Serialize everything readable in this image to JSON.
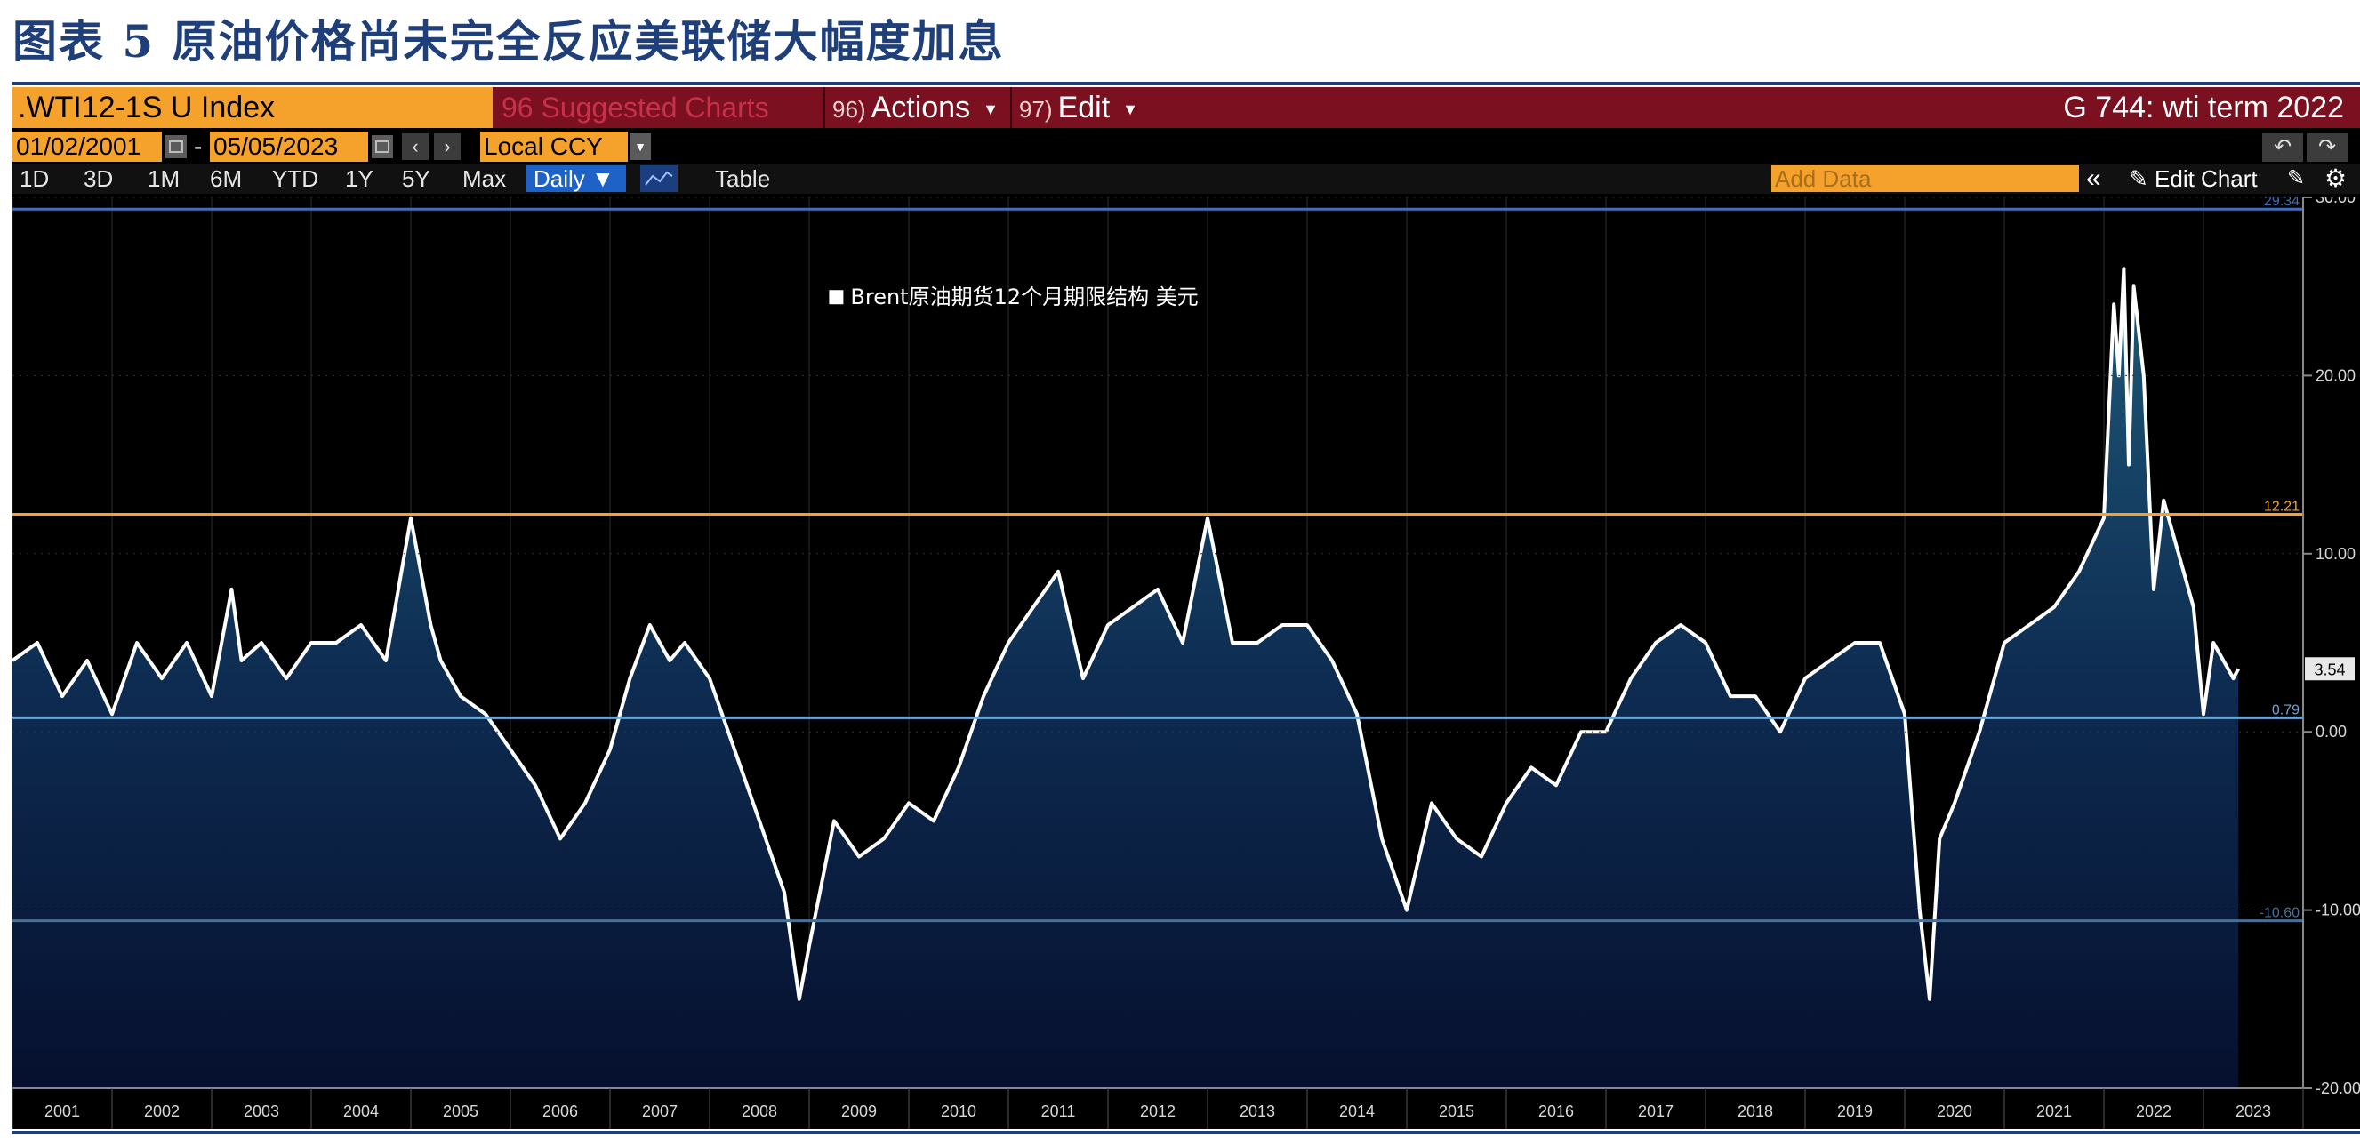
{
  "figure_title": "图表 5 原油价格尚未完全反应美联储大幅度加息",
  "toolbar": {
    "ticker": ".WTI12-1S U Index",
    "suggested": "96 Suggested Charts",
    "actions_num": "96)",
    "actions_label": "Actions",
    "edit_num": "97)",
    "edit_label": "Edit",
    "chart_name": "G 744: wti term 2022"
  },
  "controls": {
    "start_date": "01/02/2001",
    "end_date": "05/05/2023",
    "currency": "Local CCY",
    "ranges": [
      "1D",
      "3D",
      "1M",
      "6M",
      "YTD",
      "1Y",
      "5Y",
      "Max"
    ],
    "frequency": "Daily",
    "table_label": "Table",
    "add_data_placeholder": "Add Data",
    "edit_chart_label": "Edit Chart"
  },
  "icons": [
    "calendar-icon",
    "arrow-left-icon",
    "arrow-right-icon",
    "undo-icon",
    "redo-icon",
    "line-chart-icon",
    "collapse-icon",
    "pencil-icon",
    "gear-icon"
  ],
  "colors": {
    "brand_bar": "#7a1020",
    "accent_orange": "#f4a22c",
    "line": "#ffffff",
    "upper_ref": "#3f6fbf",
    "orange_ref": "#f4a22c",
    "mid_ref": "#6fa6d6",
    "lower_ref": "#4a6f96",
    "title_blue": "#1f3f7a"
  },
  "chart_data": {
    "type": "area",
    "legend": "Brent原油期货12个月期限结构 美元",
    "legend_position": "top-center",
    "ylim": [
      -20,
      30
    ],
    "y_ticks": [
      30,
      20,
      10,
      0,
      -10,
      -20
    ],
    "y_tick_labels": [
      "30.00",
      "20.00",
      "10.00",
      "0.00",
      "-10.00",
      "-20.00"
    ],
    "x_ticks": [
      "2001",
      "2002",
      "2003",
      "2004",
      "2005",
      "2006",
      "2007",
      "2008",
      "2009",
      "2010",
      "2011",
      "2012",
      "2013",
      "2014",
      "2015",
      "2016",
      "2017",
      "2018",
      "2019",
      "2020",
      "2021",
      "2022",
      "2023"
    ],
    "grid": true,
    "last_value": 3.54,
    "last_value_label": "3.54",
    "reference_lines": [
      {
        "value": 29.34,
        "label": "29.34",
        "color": "#3f6fbf"
      },
      {
        "value": 12.21,
        "label": "12.21",
        "color": "#f4a22c"
      },
      {
        "value": 0.79,
        "label": "0.79",
        "color": "#6fa6d6"
      },
      {
        "value": -10.6,
        "label": "-10.60",
        "color": "#4a6f96"
      }
    ],
    "x": [
      2001.0,
      2001.25,
      2001.5,
      2001.75,
      2002.0,
      2002.25,
      2002.5,
      2002.75,
      2003.0,
      2003.2,
      2003.3,
      2003.5,
      2003.75,
      2004.0,
      2004.25,
      2004.5,
      2004.75,
      2005.0,
      2005.2,
      2005.3,
      2005.5,
      2005.75,
      2006.0,
      2006.25,
      2006.5,
      2006.75,
      2007.0,
      2007.2,
      2007.4,
      2007.6,
      2007.75,
      2008.0,
      2008.25,
      2008.5,
      2008.75,
      2008.9,
      2009.0,
      2009.25,
      2009.5,
      2009.75,
      2010.0,
      2010.25,
      2010.5,
      2010.75,
      2011.0,
      2011.25,
      2011.5,
      2011.75,
      2012.0,
      2012.25,
      2012.5,
      2012.75,
      2013.0,
      2013.25,
      2013.5,
      2013.75,
      2014.0,
      2014.25,
      2014.5,
      2014.75,
      2015.0,
      2015.25,
      2015.5,
      2015.75,
      2016.0,
      2016.25,
      2016.5,
      2016.75,
      2017.0,
      2017.25,
      2017.5,
      2017.75,
      2018.0,
      2018.25,
      2018.5,
      2018.75,
      2019.0,
      2019.25,
      2019.5,
      2019.75,
      2020.0,
      2020.15,
      2020.25,
      2020.35,
      2020.5,
      2020.75,
      2021.0,
      2021.25,
      2021.5,
      2021.75,
      2022.0,
      2022.1,
      2022.15,
      2022.2,
      2022.25,
      2022.3,
      2022.4,
      2022.5,
      2022.6,
      2022.75,
      2022.9,
      2023.0,
      2023.1,
      2023.2,
      2023.3,
      2023.35
    ],
    "y": [
      4,
      5,
      2,
      4,
      1,
      5,
      3,
      5,
      2,
      8,
      4,
      5,
      3,
      5,
      5,
      6,
      4,
      12,
      6,
      4,
      2,
      1,
      -1,
      -3,
      -6,
      -4,
      -1,
      3,
      6,
      4,
      5,
      3,
      -1,
      -5,
      -9,
      -15,
      -12,
      -5,
      -7,
      -6,
      -4,
      -5,
      -2,
      2,
      5,
      7,
      9,
      3,
      6,
      7,
      8,
      5,
      12,
      5,
      5,
      6,
      6,
      4,
      1,
      -6,
      -10,
      -4,
      -6,
      -7,
      -4,
      -2,
      -3,
      0,
      0,
      3,
      5,
      6,
      5,
      2,
      2,
      0,
      3,
      4,
      5,
      5,
      1,
      -10,
      -15,
      -6,
      -4,
      0,
      5,
      6,
      7,
      9,
      12,
      24,
      20,
      26,
      15,
      25,
      20,
      8,
      13,
      10,
      7,
      1,
      5,
      4,
      3,
      3.54
    ]
  }
}
